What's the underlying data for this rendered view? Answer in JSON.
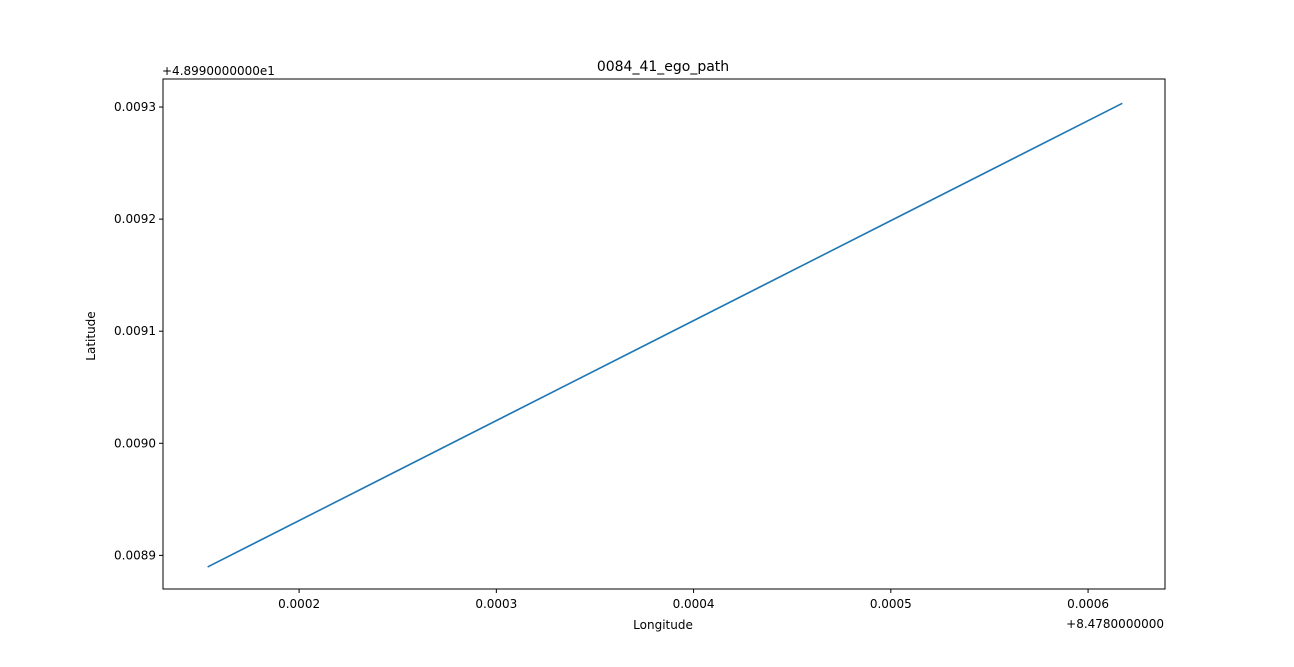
{
  "chart_data": {
    "type": "line",
    "title": "0084_41_ego_path",
    "xlabel": "Longitude",
    "ylabel": "Latitude",
    "x_offset_label": "+8.4780000000",
    "y_offset_label": "+4.8990000000e1",
    "x_ticks": [
      "0.0002",
      "0.0003",
      "0.0004",
      "0.0005",
      "0.0006"
    ],
    "y_ticks": [
      "0.0089",
      "0.0090",
      "0.0091",
      "0.0092",
      "0.0093"
    ],
    "xlim": [
      0.000131,
      0.000639
    ],
    "ylim": [
      0.00887,
      0.009325
    ],
    "grid": false,
    "legend": "none",
    "series": [
      {
        "color": "#1f77b4",
        "x": [
          0.000154,
          0.000617
        ],
        "y": [
          0.00889,
          0.009303
        ]
      }
    ]
  }
}
